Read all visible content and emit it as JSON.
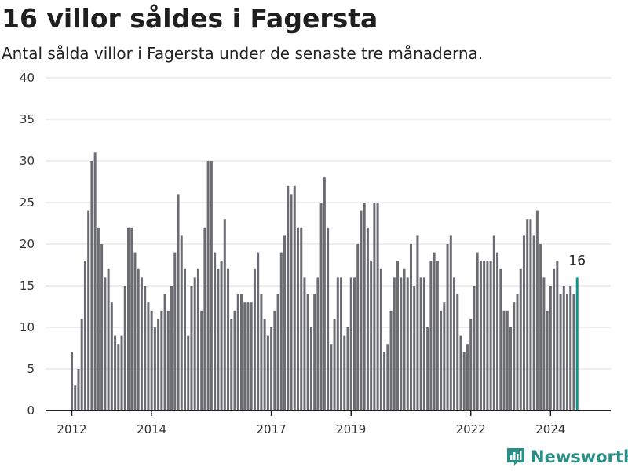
{
  "title": "16 villor såldes i Fagersta",
  "subtitle": "Antal sålda villor i Fagersta under de senaste tre månaderna.",
  "brand": {
    "name": "Newsworthy",
    "icon": "newsworthy-logo-icon",
    "color": "#2a8f87"
  },
  "colors": {
    "bar": "#6b6b72",
    "highlight": "#0e948f",
    "grid": "#dcdcdc"
  },
  "chart_data": {
    "type": "bar",
    "ylim": [
      0,
      40
    ],
    "y_ticks": [
      0,
      5,
      10,
      15,
      20,
      25,
      30,
      35,
      40
    ],
    "x_ticks": [
      {
        "label": "2012",
        "index": 0
      },
      {
        "label": "2014",
        "index": 24
      },
      {
        "label": "2017",
        "index": 60
      },
      {
        "label": "2019",
        "index": 84
      },
      {
        "label": "2022",
        "index": 120
      },
      {
        "label": "2024",
        "index": 144
      }
    ],
    "values": [
      7,
      3,
      5,
      11,
      18,
      24,
      30,
      31,
      22,
      20,
      16,
      17,
      13,
      9,
      8,
      9,
      15,
      22,
      22,
      19,
      17,
      16,
      15,
      13,
      12,
      10,
      11,
      12,
      14,
      12,
      15,
      19,
      26,
      21,
      17,
      9,
      15,
      16,
      17,
      12,
      22,
      30,
      30,
      19,
      17,
      18,
      23,
      17,
      11,
      12,
      14,
      14,
      13,
      13,
      13,
      17,
      19,
      14,
      11,
      9,
      10,
      12,
      14,
      19,
      21,
      27,
      26,
      27,
      22,
      22,
      16,
      14,
      10,
      14,
      16,
      25,
      28,
      22,
      8,
      11,
      16,
      16,
      9,
      10,
      16,
      16,
      20,
      24,
      25,
      22,
      18,
      25,
      25,
      17,
      7,
      8,
      12,
      16,
      18,
      16,
      17,
      16,
      20,
      15,
      21,
      16,
      16,
      10,
      18,
      19,
      18,
      12,
      13,
      20,
      21,
      16,
      14,
      9,
      7,
      8,
      11,
      15,
      19,
      18,
      18,
      18,
      18,
      21,
      19,
      17,
      12,
      12,
      10,
      13,
      14,
      17,
      21,
      23,
      23,
      21,
      24,
      20,
      16,
      12,
      15,
      17,
      18,
      14,
      15,
      14,
      15,
      14,
      16
    ],
    "highlight_index": 152,
    "annotation": {
      "text": "16",
      "index": 152
    }
  }
}
